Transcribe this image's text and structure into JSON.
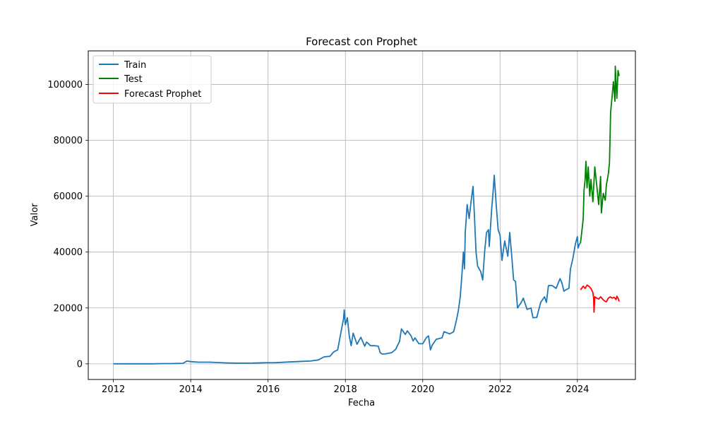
{
  "chart_data": {
    "type": "line",
    "title": "Forecast con Prophet",
    "xlabel": "Fecha",
    "ylabel": "Valor",
    "xlim": [
      2011.35,
      2025.5
    ],
    "ylim": [
      -5600,
      112000
    ],
    "x_ticks": [
      2012,
      2014,
      2016,
      2018,
      2020,
      2022,
      2024
    ],
    "x_tick_labels": [
      "2012",
      "2014",
      "2016",
      "2018",
      "2020",
      "2022",
      "2024"
    ],
    "y_ticks": [
      0,
      20000,
      40000,
      60000,
      80000,
      100000
    ],
    "y_tick_labels": [
      "0",
      "20000",
      "40000",
      "60000",
      "80000",
      "100000"
    ],
    "grid": true,
    "legend_position": "top-left",
    "series": [
      {
        "name": "Train",
        "color": "#1f77b4",
        "points": [
          [
            2012.0,
            5
          ],
          [
            2012.5,
            7
          ],
          [
            2013.0,
            14
          ],
          [
            2013.3,
            100
          ],
          [
            2013.5,
            100
          ],
          [
            2013.8,
            200
          ],
          [
            2013.9,
            1000
          ],
          [
            2014.0,
            800
          ],
          [
            2014.2,
            600
          ],
          [
            2014.5,
            600
          ],
          [
            2014.9,
            350
          ],
          [
            2015.2,
            250
          ],
          [
            2015.6,
            260
          ],
          [
            2015.9,
            400
          ],
          [
            2016.2,
            420
          ],
          [
            2016.5,
            650
          ],
          [
            2016.9,
            900
          ],
          [
            2017.1,
            1000
          ],
          [
            2017.3,
            1400
          ],
          [
            2017.45,
            2500
          ],
          [
            2017.6,
            2700
          ],
          [
            2017.7,
            4300
          ],
          [
            2017.8,
            5000
          ],
          [
            2017.88,
            11000
          ],
          [
            2017.95,
            16000
          ],
          [
            2017.97,
            19300
          ],
          [
            2018.0,
            14000
          ],
          [
            2018.05,
            16500
          ],
          [
            2018.1,
            10000
          ],
          [
            2018.15,
            6500
          ],
          [
            2018.2,
            11000
          ],
          [
            2018.3,
            7000
          ],
          [
            2018.4,
            9500
          ],
          [
            2018.5,
            6300
          ],
          [
            2018.55,
            7800
          ],
          [
            2018.65,
            6500
          ],
          [
            2018.75,
            6500
          ],
          [
            2018.85,
            6300
          ],
          [
            2018.9,
            4000
          ],
          [
            2018.95,
            3500
          ],
          [
            2019.05,
            3600
          ],
          [
            2019.2,
            4000
          ],
          [
            2019.3,
            5200
          ],
          [
            2019.4,
            8000
          ],
          [
            2019.45,
            12500
          ],
          [
            2019.55,
            10500
          ],
          [
            2019.6,
            11800
          ],
          [
            2019.7,
            10000
          ],
          [
            2019.75,
            8200
          ],
          [
            2019.8,
            9300
          ],
          [
            2019.9,
            7200
          ],
          [
            2020.0,
            7200
          ],
          [
            2020.1,
            9500
          ],
          [
            2020.15,
            10000
          ],
          [
            2020.2,
            5000
          ],
          [
            2020.25,
            6800
          ],
          [
            2020.35,
            8800
          ],
          [
            2020.5,
            9300
          ],
          [
            2020.55,
            11500
          ],
          [
            2020.7,
            10700
          ],
          [
            2020.8,
            11500
          ],
          [
            2020.87,
            15500
          ],
          [
            2020.92,
            19000
          ],
          [
            2020.97,
            24000
          ],
          [
            2021.02,
            33000
          ],
          [
            2021.05,
            40000
          ],
          [
            2021.08,
            34000
          ],
          [
            2021.1,
            47000
          ],
          [
            2021.15,
            57000
          ],
          [
            2021.2,
            52000
          ],
          [
            2021.25,
            58000
          ],
          [
            2021.3,
            63500
          ],
          [
            2021.33,
            55000
          ],
          [
            2021.38,
            40000
          ],
          [
            2021.42,
            35000
          ],
          [
            2021.5,
            33000
          ],
          [
            2021.55,
            30000
          ],
          [
            2021.6,
            40000
          ],
          [
            2021.65,
            47000
          ],
          [
            2021.7,
            48000
          ],
          [
            2021.72,
            42000
          ],
          [
            2021.78,
            55000
          ],
          [
            2021.82,
            61500
          ],
          [
            2021.85,
            67500
          ],
          [
            2021.9,
            57000
          ],
          [
            2021.95,
            48000
          ],
          [
            2022.0,
            46000
          ],
          [
            2022.05,
            37000
          ],
          [
            2022.12,
            44000
          ],
          [
            2022.2,
            38500
          ],
          [
            2022.25,
            47000
          ],
          [
            2022.3,
            39000
          ],
          [
            2022.35,
            30000
          ],
          [
            2022.4,
            29500
          ],
          [
            2022.45,
            20000
          ],
          [
            2022.55,
            22000
          ],
          [
            2022.6,
            23500
          ],
          [
            2022.7,
            19500
          ],
          [
            2022.8,
            20000
          ],
          [
            2022.85,
            16500
          ],
          [
            2022.95,
            16600
          ],
          [
            2023.05,
            22000
          ],
          [
            2023.15,
            24000
          ],
          [
            2023.2,
            22000
          ],
          [
            2023.25,
            28000
          ],
          [
            2023.35,
            28000
          ],
          [
            2023.45,
            27000
          ],
          [
            2023.55,
            30500
          ],
          [
            2023.6,
            29000
          ],
          [
            2023.65,
            26000
          ],
          [
            2023.7,
            26500
          ],
          [
            2023.78,
            27000
          ],
          [
            2023.82,
            34000
          ],
          [
            2023.88,
            37500
          ],
          [
            2023.95,
            43000
          ],
          [
            2024.0,
            45500
          ],
          [
            2024.02,
            41500
          ],
          [
            2024.05,
            42800
          ],
          [
            2024.08,
            43200
          ]
        ]
      },
      {
        "name": "Test",
        "color": "#008000",
        "points": [
          [
            2024.08,
            43200
          ],
          [
            2024.12,
            48000
          ],
          [
            2024.15,
            52000
          ],
          [
            2024.17,
            62000
          ],
          [
            2024.2,
            66000
          ],
          [
            2024.22,
            72500
          ],
          [
            2024.25,
            63000
          ],
          [
            2024.28,
            70500
          ],
          [
            2024.32,
            60000
          ],
          [
            2024.35,
            66000
          ],
          [
            2024.4,
            58000
          ],
          [
            2024.45,
            70500
          ],
          [
            2024.5,
            64000
          ],
          [
            2024.55,
            57000
          ],
          [
            2024.6,
            67000
          ],
          [
            2024.62,
            54000
          ],
          [
            2024.67,
            61000
          ],
          [
            2024.72,
            58500
          ],
          [
            2024.75,
            64000
          ],
          [
            2024.8,
            68000
          ],
          [
            2024.83,
            72000
          ],
          [
            2024.86,
            90000
          ],
          [
            2024.9,
            96000
          ],
          [
            2024.93,
            101000
          ],
          [
            2024.97,
            94000
          ],
          [
            2024.98,
            106500
          ],
          [
            2025.02,
            95000
          ],
          [
            2025.05,
            105000
          ],
          [
            2025.08,
            103000
          ]
        ]
      },
      {
        "name": "Forecast Prophet",
        "color": "#ff0000",
        "points": [
          [
            2024.08,
            26500
          ],
          [
            2024.1,
            26800
          ],
          [
            2024.15,
            27800
          ],
          [
            2024.2,
            27000
          ],
          [
            2024.25,
            28200
          ],
          [
            2024.3,
            27700
          ],
          [
            2024.35,
            27000
          ],
          [
            2024.4,
            25500
          ],
          [
            2024.42,
            23500
          ],
          [
            2024.43,
            18500
          ],
          [
            2024.45,
            24000
          ],
          [
            2024.5,
            23500
          ],
          [
            2024.55,
            23200
          ],
          [
            2024.6,
            24000
          ],
          [
            2024.65,
            23200
          ],
          [
            2024.7,
            22500
          ],
          [
            2024.75,
            22200
          ],
          [
            2024.8,
            23500
          ],
          [
            2024.85,
            24000
          ],
          [
            2024.9,
            23500
          ],
          [
            2024.95,
            23800
          ],
          [
            2025.0,
            23000
          ],
          [
            2025.02,
            24200
          ],
          [
            2025.05,
            23500
          ],
          [
            2025.08,
            22300
          ]
        ]
      }
    ]
  }
}
